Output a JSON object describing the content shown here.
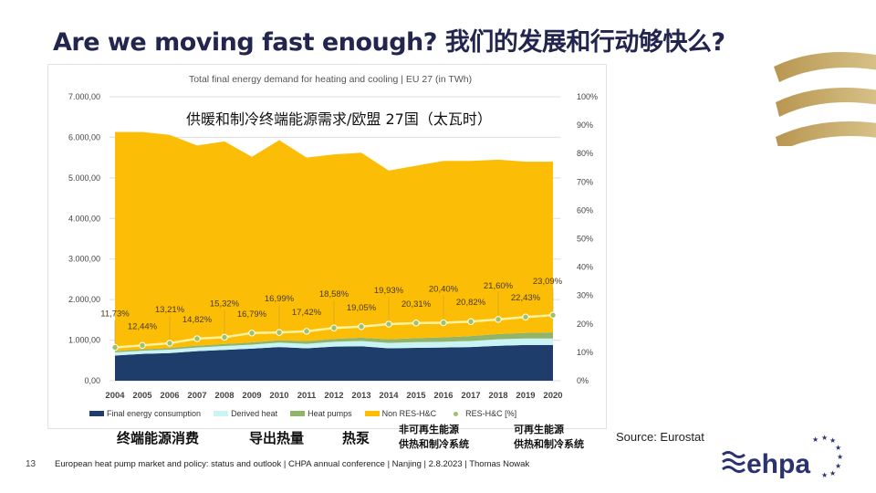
{
  "title": "Are we moving fast enough? 我们的发展和行动够快么?",
  "page_number": "13",
  "footer": "European heat pump market and policy: status and outlook  | CHPA annual conference | Nanjing | 2.8.2023 | Thomas Nowak",
  "source": "Source: Eurostat",
  "logo_text": "ehpa",
  "chinese_labels": {
    "chart_title": "供暖和制冷终端能源需求/欧盟 27国（太瓦时）",
    "final": "终端能源消费",
    "derived": "导出热量",
    "heatpumps": "热泵",
    "nonres_line1": "非可再生能源",
    "nonres_line2": "供热和制冷系统",
    "res_line1": "可再生能源",
    "res_line2": "供热和制冷系统"
  },
  "chart_data": {
    "type": "area",
    "stacked": true,
    "title": "Total final energy demand for heating and cooling | EU 27 (in TWh)",
    "categories": [
      "2004",
      "2005",
      "2006",
      "2007",
      "2008",
      "2009",
      "2010",
      "2011",
      "2012",
      "2013",
      "2014",
      "2015",
      "2016",
      "2017",
      "2018",
      "2019",
      "2020"
    ],
    "ylim": [
      0,
      7000
    ],
    "yticks": [
      "0,00",
      "1.000,00",
      "2.000,00",
      "3.000,00",
      "4.000,00",
      "5.000,00",
      "6.000,00",
      "7.000,00"
    ],
    "y2lim": [
      0,
      100
    ],
    "y2ticks": [
      "0%",
      "10%",
      "20%",
      "30%",
      "40%",
      "50%",
      "60%",
      "70%",
      "80%",
      "90%",
      "100%"
    ],
    "grid": true,
    "legend_position": "bottom",
    "series": [
      {
        "name": "Final energy consumption",
        "color": "#1f3d6b",
        "values": [
          620,
          660,
          680,
          730,
          760,
          790,
          830,
          800,
          840,
          850,
          800,
          810,
          820,
          830,
          860,
          880,
          880
        ]
      },
      {
        "name": "Derived heat",
        "color": "#c9f3f5",
        "values": [
          80,
          80,
          85,
          90,
          95,
          100,
          110,
          110,
          120,
          130,
          130,
          140,
          140,
          150,
          160,
          160,
          160
        ]
      },
      {
        "name": "Heat pumps",
        "color": "#8fb46a",
        "values": [
          30,
          35,
          40,
          45,
          50,
          55,
          60,
          65,
          70,
          80,
          90,
          100,
          110,
          120,
          130,
          140,
          150
        ]
      },
      {
        "name": "Non RES-H&C",
        "color": "#fbbd05",
        "values": [
          5400,
          5355,
          5255,
          4935,
          4995,
          4575,
          4930,
          4525,
          4550,
          4560,
          4160,
          4250,
          4350,
          4320,
          4300,
          4220,
          4210
        ]
      }
    ],
    "line_series": {
      "name": "RES-H&C [%]",
      "axis": "right",
      "color": "#fdf3a0",
      "marker_color": "#9cc26a",
      "values": [
        11.73,
        12.44,
        13.21,
        14.82,
        15.32,
        16.79,
        16.99,
        17.42,
        18.58,
        19.05,
        19.93,
        20.31,
        20.4,
        20.82,
        21.6,
        22.43,
        23.09
      ],
      "labels": [
        "11,73%",
        "12,44%",
        "13,21%",
        "14,82%",
        "15,32%",
        "16,79%",
        "16,99%",
        "17,42%",
        "18,58%",
        "19,05%",
        "19,93%",
        "20,31%",
        "20,40%",
        "20,82%",
        "21,60%",
        "22,43%",
        "23,09%"
      ]
    }
  }
}
